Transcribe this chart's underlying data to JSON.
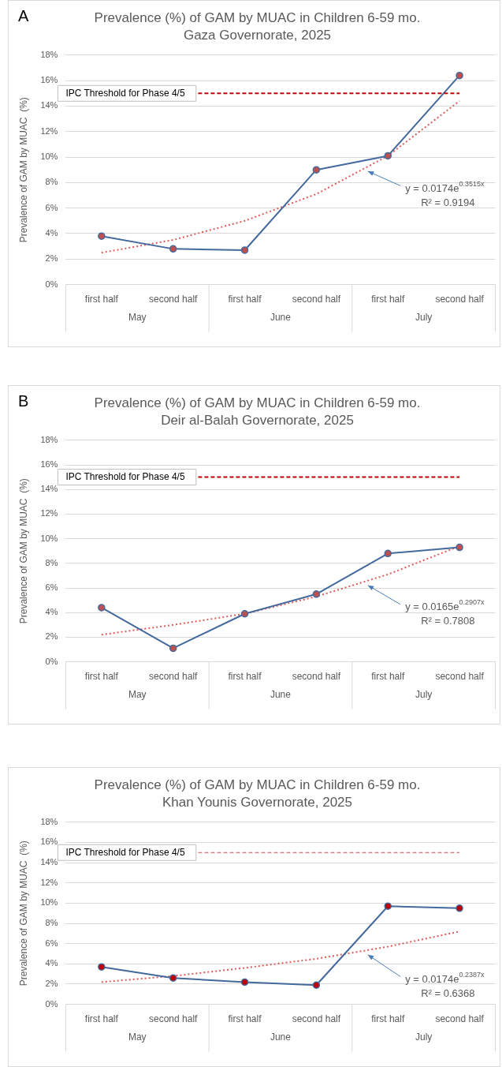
{
  "chart_data": [
    {
      "type": "line",
      "title": "Prevalence (%) of GAM by MUAC in Children 6-59 mo.",
      "subtitle": "Gaza Governorate, 2025",
      "ylabel": "Prevalence of GAM by MUAC  (%)",
      "categories": [
        "first half",
        "second half",
        "first half",
        "second half",
        "first half",
        "second half"
      ],
      "series": [
        {
          "type": "line",
          "color": "#44699c",
          "colors": [
            "#c0504d",
            "#c0504d",
            "#c0504d",
            "#c0504d",
            "#c0504d",
            "#c0504d"
          ],
          "marker": "circle",
          "line_style": "solid",
          "values": [
            3.8,
            2.8,
            2.7,
            9.0,
            10.1,
            16.4
          ]
        },
        {
          "type": "line",
          "color": "#e05a5a",
          "marker": "none",
          "line_style": "dotted",
          "values": [
            2.5,
            3.5,
            5.0,
            7.1,
            10.1,
            14.4
          ]
        }
      ],
      "ylim": [
        0,
        18
      ],
      "yticks": [
        {
          "value": 0,
          "label": "0%"
        },
        {
          "value": 2,
          "label": "2%"
        },
        {
          "value": 4,
          "label": "4%"
        },
        {
          "value": 6,
          "label": "6%"
        },
        {
          "value": 8,
          "label": "8%"
        },
        {
          "value": 10,
          "label": "10%"
        },
        {
          "value": 12,
          "label": "12%"
        },
        {
          "value": 14,
          "label": "14%"
        },
        {
          "value": 16,
          "label": "16%"
        },
        {
          "value": 18,
          "label": "18%"
        }
      ],
      "grid": "y",
      "legend": false,
      "ref_lines": [
        {
          "axis": "y",
          "value": 15,
          "label": "IPC Threshold for Phase 4/5",
          "color": "#c00000",
          "line_style": "dashed"
        }
      ],
      "annotations": [
        "May",
        "June",
        "July",
        "y = 0.0174e$^{0.3515x}$",
        "R² = 0.9194",
        "A"
      ]
    },
    {
      "type": "line",
      "title": "Prevalence (%) of GAM by MUAC in Children 6-59 mo.",
      "subtitle": "Deir al-Balah Governorate, 2025",
      "ylabel": "Prevalence of GAM by MUAC  (%)",
      "categories": [
        "first half",
        "second half",
        "first half",
        "second half",
        "first half",
        "second half"
      ],
      "series": [
        {
          "type": "line",
          "color": "#44699c",
          "colors": [
            "#c0504d",
            "#c0504d",
            "#c0504d",
            "#c0504d",
            "#c0504d",
            "#c0504d"
          ],
          "marker": "circle",
          "line_style": "solid",
          "values": [
            4.4,
            1.1,
            3.9,
            5.5,
            8.8,
            9.3
          ]
        },
        {
          "type": "line",
          "color": "#e05a5a",
          "marker": "none",
          "line_style": "dotted",
          "values": [
            2.2,
            3.0,
            3.9,
            5.3,
            7.1,
            9.4
          ]
        }
      ],
      "ylim": [
        0,
        18
      ],
      "yticks": [
        {
          "value": 0,
          "label": "0%"
        },
        {
          "value": 2,
          "label": "2%"
        },
        {
          "value": 4,
          "label": "4%"
        },
        {
          "value": 6,
          "label": "6%"
        },
        {
          "value": 8,
          "label": "8%"
        },
        {
          "value": 10,
          "label": "10%"
        },
        {
          "value": 12,
          "label": "12%"
        },
        {
          "value": 14,
          "label": "14%"
        },
        {
          "value": 16,
          "label": "16%"
        },
        {
          "value": 18,
          "label": "18%"
        }
      ],
      "grid": "y",
      "legend": false,
      "ref_lines": [
        {
          "axis": "y",
          "value": 15,
          "label": "IPC Threshold for Phase 4/5",
          "color": "#c00000",
          "line_style": "dashed"
        }
      ],
      "annotations": [
        "May",
        "June",
        "July",
        "y = 0.0165e$^{0.2907x}$",
        "R² = 0.7808",
        "B"
      ]
    },
    {
      "type": "line",
      "title": "Prevalence (%) of GAM by MUAC in Children 6-59 mo.",
      "subtitle": "Khan Younis Governorate, 2025",
      "ylabel": "Prevalence of GAM by MUAC  (%)",
      "categories": [
        "first half",
        "second half",
        "first half",
        "second half",
        "first half",
        "second half"
      ],
      "series": [
        {
          "type": "line",
          "color": "#44699c",
          "colors": [
            "#c00000",
            "#c00000",
            "#c00000",
            "#c00000",
            "#c00000",
            "#c00000"
          ],
          "marker": "circle",
          "line_style": "solid",
          "values": [
            3.7,
            2.6,
            2.2,
            1.9,
            9.7,
            9.5
          ]
        },
        {
          "type": "line",
          "color": "#e05a5a",
          "marker": "none",
          "line_style": "dotted",
          "values": [
            2.2,
            2.8,
            3.6,
            4.5,
            5.7,
            7.2
          ]
        }
      ],
      "ylim": [
        0,
        18
      ],
      "yticks": [
        {
          "value": 0,
          "label": "0%"
        },
        {
          "value": 2,
          "label": "2%"
        },
        {
          "value": 4,
          "label": "4%"
        },
        {
          "value": 6,
          "label": "6%"
        },
        {
          "value": 8,
          "label": "8%"
        },
        {
          "value": 10,
          "label": "10%"
        },
        {
          "value": 12,
          "label": "12%"
        },
        {
          "value": 14,
          "label": "14%"
        },
        {
          "value": 16,
          "label": "16%"
        },
        {
          "value": 18,
          "label": "18%"
        }
      ],
      "grid": "y",
      "legend": false,
      "ref_lines": [
        {
          "axis": "y",
          "value": 15,
          "label": "IPC Threshold for Phase 4/5",
          "color": "#d05050",
          "line_style": "dashed"
        }
      ],
      "annotations": [
        "May",
        "June",
        "July",
        "y = 0.0174e$^{0.2387x}$",
        "R² = 0.6368"
      ]
    }
  ]
}
